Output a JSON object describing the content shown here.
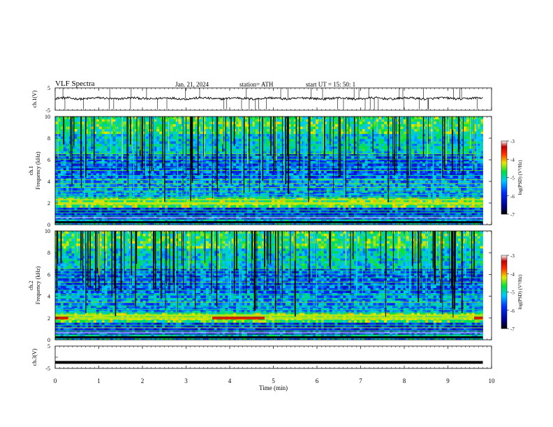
{
  "header": {
    "title": "VLF Spectra",
    "date": "Jan. 21, 2024",
    "station": "station= ATH",
    "start": "start UT =  15: 50: 1"
  },
  "chart_data": [
    {
      "type": "line",
      "name": "ch1-waveform",
      "ylabel": "ch.1(V)",
      "ylim": [
        -5,
        5
      ],
      "yticks": [
        "5",
        "-5"
      ],
      "xlim": [
        0,
        10
      ],
      "baseline_v": 0.3,
      "noise_v": 0.5
    },
    {
      "type": "heatmap",
      "name": "ch1-spectrogram",
      "ylabel_line1": "ch.1",
      "ylabel_line2": "Frequency (kHz)",
      "xlim": [
        0,
        9.8
      ],
      "ylim": [
        0,
        10
      ],
      "yticks": [
        "0",
        "2",
        "4",
        "6",
        "8",
        "10"
      ],
      "colorbar": {
        "label": "log(PSD) (V²/Hz)",
        "range": [
          -7,
          -3
        ],
        "ticks": [
          "-3",
          "-4",
          "-5",
          "-6",
          "-7"
        ]
      },
      "strong_bands_khz": [
        2.0,
        2.3,
        0.2
      ],
      "hot_band_khz": 2.0
    },
    {
      "type": "heatmap",
      "name": "ch2-spectrogram",
      "ylabel_line1": "ch.2",
      "ylabel_line2": "Frequency (kHz)",
      "xlim": [
        0,
        9.8
      ],
      "ylim": [
        0,
        10
      ],
      "yticks": [
        "0",
        "2",
        "4",
        "6",
        "8",
        "10"
      ],
      "colorbar": {
        "label": "log(PSD) (V²/Hz)",
        "range": [
          -7,
          -3
        ],
        "ticks": [
          "-3",
          "-4",
          "-5",
          "-6",
          "-7"
        ]
      },
      "strong_bands_khz": [
        2.0,
        2.2,
        0.2
      ],
      "hot_band_khz": 2.0,
      "hot_segments_min": [
        [
          0.0,
          0.3
        ],
        [
          3.6,
          4.8
        ],
        [
          9.6,
          9.8
        ]
      ]
    },
    {
      "type": "line",
      "name": "ch3-waveform",
      "ylabel": "ch.3(V)",
      "ylim": [
        -5,
        5
      ],
      "yticks": [
        "5",
        "-5"
      ],
      "xlim": [
        0,
        10
      ],
      "baseline_v": -2.3,
      "noise_v": 0.0
    }
  ],
  "xaxis": {
    "label": "Time (min)",
    "ticks": [
      "0",
      "1",
      "2",
      "3",
      "4",
      "5",
      "6",
      "7",
      "8",
      "9",
      "10"
    ]
  }
}
